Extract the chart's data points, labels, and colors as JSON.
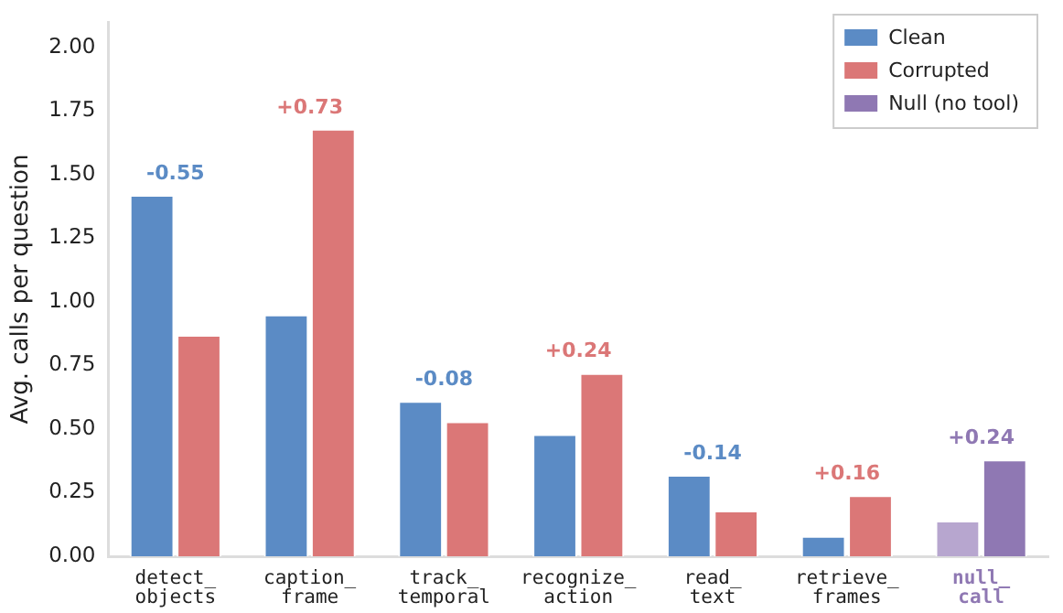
{
  "chart_data": {
    "type": "bar",
    "ylabel": "Avg. calls per question",
    "categories": [
      "detect_\nobjects",
      "caption_\nframe",
      "track_\ntemporal",
      "recognize_\naction",
      "read_\ntext",
      "retrieve_\nframes",
      "null_\ncall"
    ],
    "series": [
      {
        "name": "Clean",
        "color": "#5b8bc5",
        "colors": [
          "#5b8bc5",
          "#5b8bc5",
          "#5b8bc5",
          "#5b8bc5",
          "#5b8bc5",
          "#5b8bc5",
          "#b7a6cf"
        ],
        "values": [
          1.42,
          0.95,
          0.61,
          0.48,
          0.32,
          0.08,
          0.14
        ]
      },
      {
        "name": "Corrupted",
        "color": "#db7777",
        "values": [
          0.87,
          1.68,
          0.53,
          0.72,
          0.18,
          0.24,
          null
        ]
      },
      {
        "name": "Null (no tool)",
        "color": "#8f78b3",
        "values": [
          null,
          null,
          null,
          null,
          null,
          null,
          0.38
        ]
      }
    ],
    "annotations": [
      {
        "text": "-0.55",
        "x": "detect_\nobjects",
        "y": 1.42
      },
      {
        "text": "+0.73",
        "x": "caption_\nframe",
        "y": 1.68
      },
      {
        "text": "-0.08",
        "x": "track_\ntemporal",
        "y": 0.61
      },
      {
        "text": "+0.24",
        "x": "recognize_\naction",
        "y": 0.72
      },
      {
        "text": "-0.14",
        "x": "read_\ntext",
        "y": 0.32
      },
      {
        "text": "+0.16",
        "x": "retrieve_\nframes",
        "y": 0.24
      },
      {
        "text": "+0.24",
        "x": "null_\ncall",
        "y": 0.38
      }
    ],
    "ylim": [
      0,
      2.1
    ],
    "yticks": [
      {
        "value": 0,
        "label": "0.00"
      },
      {
        "value": 0.25,
        "label": "0.25"
      },
      {
        "value": 0.5,
        "label": "0.50"
      },
      {
        "value": 0.75,
        "label": "0.75"
      },
      {
        "value": 1,
        "label": "1.00"
      },
      {
        "value": 1.25,
        "label": "1.25"
      },
      {
        "value": 1.5,
        "label": "1.50"
      },
      {
        "value": 1.75,
        "label": "1.75"
      },
      {
        "value": 2,
        "label": "2.00"
      }
    ],
    "grid": false,
    "legend": "top right"
  }
}
